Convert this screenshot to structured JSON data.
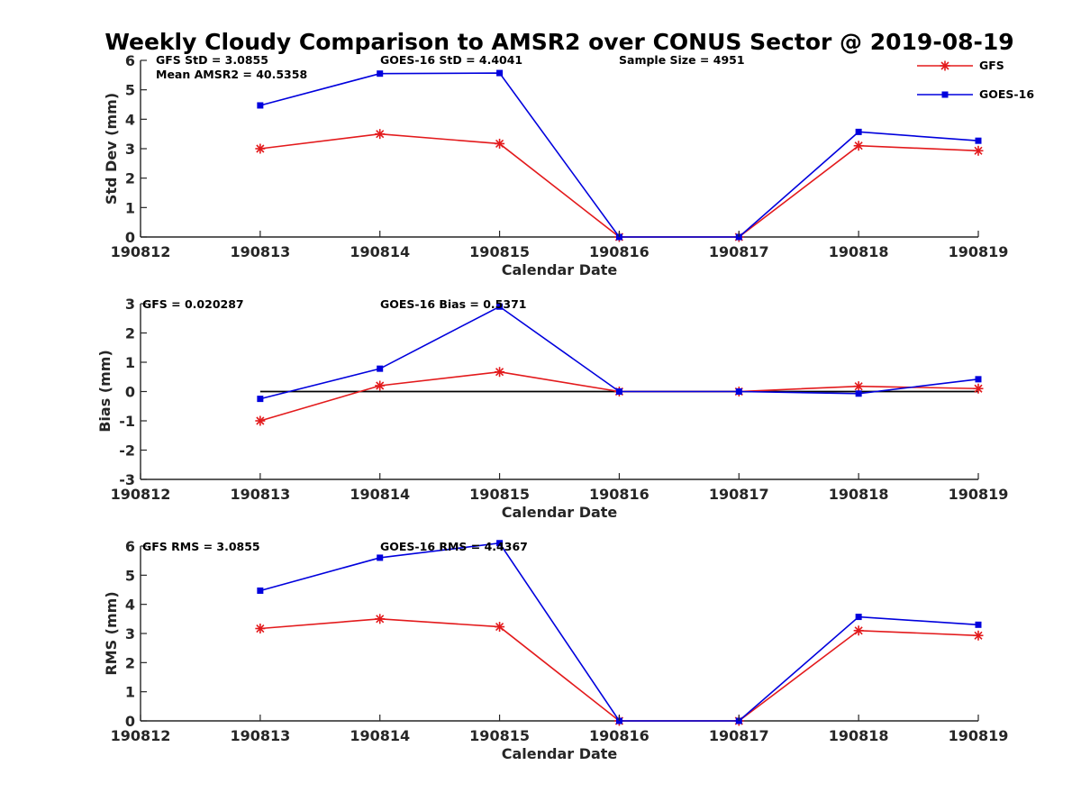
{
  "chart_data": {
    "type": "line",
    "title": "Weekly Cloudy Comparison to AMSR2 over CONUS Sector @ 2019-08-19",
    "legend": {
      "placement": "top-right",
      "entries": [
        {
          "name": "GFS",
          "color": "#e31a1c",
          "marker": "asterisk"
        },
        {
          "name": "GOES-16",
          "color": "#0000dd",
          "marker": "square"
        }
      ]
    },
    "panels": [
      {
        "id": "std",
        "ylabel": "Std Dev (mm)",
        "xlabel": "Calendar Date",
        "ylim": [
          0,
          6
        ],
        "yticks": [
          0,
          1,
          2,
          3,
          4,
          5,
          6
        ],
        "x_ticks": [
          "190812",
          "190813",
          "190814",
          "190815",
          "190816",
          "190817",
          "190818",
          "190819"
        ],
        "annotations": [
          "GFS StD = 3.0855",
          "Mean AMSR2 = 40.5358",
          "GOES-16 StD = 4.4041",
          "Sample Size = 4951"
        ],
        "zero_line": false,
        "series": [
          {
            "name": "GFS",
            "values": [
              3.0,
              3.5,
              3.17,
              0.0,
              0.0,
              3.1,
              2.93
            ]
          },
          {
            "name": "GOES-16",
            "values": [
              4.47,
              5.55,
              5.57,
              0.0,
              0.0,
              3.57,
              3.27
            ]
          }
        ]
      },
      {
        "id": "bias",
        "ylabel": "Bias (mm)",
        "xlabel": "Calendar Date",
        "ylim": [
          -3,
          3
        ],
        "yticks": [
          -3,
          -2,
          -1,
          0,
          1,
          2,
          3
        ],
        "x_ticks": [
          "190812",
          "190813",
          "190814",
          "190815",
          "190816",
          "190817",
          "190818",
          "190819"
        ],
        "annotations": [
          "GFS = 0.020287",
          "GOES-16 Bias  = 0.5371"
        ],
        "zero_line": true,
        "series": [
          {
            "name": "GFS",
            "values": [
              -1.0,
              0.2,
              0.67,
              0.0,
              0.0,
              0.18,
              0.1
            ]
          },
          {
            "name": "GOES-16",
            "values": [
              -0.25,
              0.78,
              2.9,
              0.0,
              0.0,
              -0.07,
              0.42
            ]
          }
        ]
      },
      {
        "id": "rms",
        "ylabel": "RMS (mm)",
        "xlabel": "Calendar Date",
        "ylim": [
          0,
          6
        ],
        "yticks": [
          0,
          1,
          2,
          3,
          4,
          5,
          6
        ],
        "x_ticks": [
          "190812",
          "190813",
          "190814",
          "190815",
          "190816",
          "190817",
          "190818",
          "190819"
        ],
        "annotations": [
          "GFS RMS = 3.0855",
          "GOES-16 RMS = 4.4367"
        ],
        "zero_line": false,
        "series": [
          {
            "name": "GFS",
            "values": [
              3.17,
              3.5,
              3.23,
              0.0,
              0.0,
              3.1,
              2.93
            ]
          },
          {
            "name": "GOES-16",
            "values": [
              4.47,
              5.6,
              6.1,
              0.0,
              0.0,
              3.57,
              3.3
            ]
          }
        ]
      }
    ]
  }
}
